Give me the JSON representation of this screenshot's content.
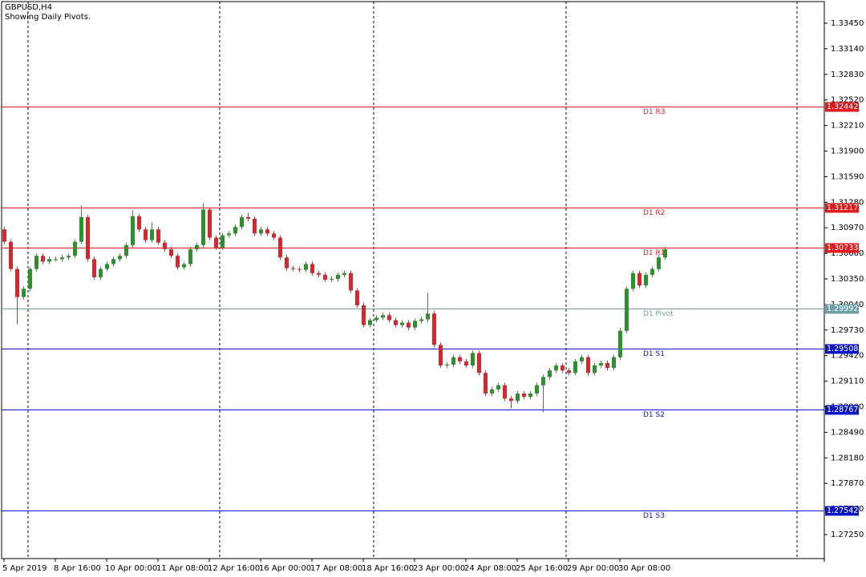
{
  "chart_data": {
    "type": "candlestick",
    "title": "GBPUSD,H4",
    "subtitle": "Showing Daily Pivots.",
    "categories": [
      "5 Apr 2019",
      null,
      null,
      null,
      null,
      null,
      null,
      null,
      "8 Apr 16:00",
      null,
      null,
      null,
      null,
      null,
      null,
      null,
      "10 Apr 00:00",
      null,
      null,
      null,
      null,
      null,
      null,
      null,
      "11 Apr 08:00",
      null,
      null,
      null,
      null,
      null,
      null,
      null,
      "12 Apr 16:00",
      null,
      null,
      null,
      null,
      null,
      null,
      null,
      "16 Apr 00:00",
      null,
      null,
      null,
      null,
      null,
      null,
      null,
      "17 Apr 08:00",
      null,
      null,
      null,
      null,
      null,
      null,
      null,
      "18 Apr 16:00",
      null,
      null,
      null,
      null,
      null,
      null,
      null,
      "23 Apr 00:00",
      null,
      null,
      null,
      null,
      null,
      null,
      null,
      "24 Apr 08:00",
      null,
      null,
      null,
      null,
      null,
      null,
      null,
      "25 Apr 16:00",
      null,
      null,
      null,
      null,
      null,
      null,
      null,
      "29 Apr 00:00",
      null,
      null,
      null,
      null,
      null,
      null,
      null,
      "30 Apr 08:00",
      null,
      null,
      null,
      null,
      null,
      null,
      null
    ],
    "open": [
      1.3095,
      1.308,
      1.3047,
      1.3013,
      1.3023,
      1.3047,
      1.3063,
      1.3056,
      1.3059,
      1.3059,
      1.3061,
      1.3063,
      1.308,
      1.311,
      1.3059,
      1.3037,
      1.3047,
      1.3053,
      1.3059,
      1.3063,
      1.3076,
      1.3111,
      1.3095,
      1.3082,
      1.3095,
      1.3079,
      1.3071,
      1.3063,
      1.3049,
      1.3053,
      1.3071,
      1.3076,
      1.3119,
      1.3085,
      1.3073,
      1.3088,
      1.309,
      1.3098,
      1.311,
      1.3108,
      1.309,
      1.3095,
      1.309,
      1.3085,
      1.3061,
      1.3048,
      1.3047,
      1.3046,
      1.3053,
      1.3042,
      1.304,
      1.3034,
      1.3035,
      1.304,
      1.3042,
      1.3021,
      1.3003,
      1.2979,
      1.2985,
      1.2988,
      1.2991,
      1.2985,
      1.2979,
      1.2982,
      1.2976,
      1.2984,
      1.2986,
      1.2993,
      1.2955,
      1.293,
      1.2931,
      1.294,
      1.2935,
      1.293,
      1.2945,
      1.2921,
      1.2896,
      1.2901,
      1.2906,
      1.289,
      1.2887,
      1.2896,
      1.2892,
      1.2896,
      1.2906,
      1.2916,
      1.2924,
      1.293,
      1.2924,
      1.2921,
      1.2935,
      1.294,
      1.2921,
      1.293,
      1.2933,
      1.2927,
      1.294,
      1.2972,
      1.3023,
      1.3042,
      1.3027,
      1.304,
      1.3047,
      1.3061
    ],
    "high": [
      1.3098,
      1.3083,
      1.305,
      1.3026,
      1.305,
      1.3066,
      1.3066,
      1.3062,
      1.3062,
      1.3064,
      1.3066,
      1.3083,
      1.3124,
      1.3113,
      1.3062,
      1.305,
      1.3056,
      1.3062,
      1.3066,
      1.3079,
      1.3118,
      1.3114,
      1.3098,
      1.3104,
      1.3098,
      1.3082,
      1.3074,
      1.3066,
      1.3056,
      1.3074,
      1.3079,
      1.3127,
      1.3122,
      1.3088,
      1.3091,
      1.3093,
      1.3101,
      1.3113,
      1.3115,
      1.3111,
      1.3098,
      1.3098,
      1.3093,
      1.3088,
      1.3064,
      1.3051,
      1.305,
      1.3056,
      1.3056,
      1.3045,
      1.3043,
      1.3038,
      1.3043,
      1.3045,
      1.3045,
      1.3024,
      1.3006,
      1.2988,
      1.2991,
      1.2994,
      1.2994,
      1.2988,
      1.2985,
      1.2985,
      1.2987,
      1.2989,
      1.3018,
      1.2996,
      1.2958,
      1.2934,
      1.2943,
      1.2943,
      1.2938,
      1.2948,
      1.2948,
      1.2924,
      1.2904,
      1.2909,
      1.2909,
      1.2893,
      1.2899,
      1.2899,
      1.2899,
      1.2909,
      1.2919,
      1.2927,
      1.2933,
      1.2933,
      1.2927,
      1.2938,
      1.2943,
      1.2943,
      1.2933,
      1.2936,
      1.2936,
      1.2943,
      1.2975,
      1.3026,
      1.3045,
      1.3045,
      1.3043,
      1.305,
      1.3064,
      1.3074
    ],
    "low": [
      1.3077,
      1.3044,
      1.298,
      1.301,
      1.302,
      1.3044,
      1.3053,
      1.3053,
      1.3056,
      1.3056,
      1.3058,
      1.306,
      1.3077,
      1.3056,
      1.3034,
      1.3034,
      1.3044,
      1.305,
      1.3056,
      1.306,
      1.3073,
      1.3092,
      1.3079,
      1.3079,
      1.3076,
      1.3068,
      1.306,
      1.3046,
      1.3046,
      1.305,
      1.3068,
      1.3073,
      1.3082,
      1.307,
      1.307,
      1.3085,
      1.3087,
      1.3095,
      1.3105,
      1.3087,
      1.3087,
      1.3087,
      1.3082,
      1.3058,
      1.3045,
      1.3044,
      1.3043,
      1.3043,
      1.3039,
      1.3037,
      1.3031,
      1.3031,
      1.3032,
      1.3037,
      1.3018,
      1.3,
      1.2976,
      1.2976,
      1.2982,
      1.2985,
      1.2982,
      1.2976,
      1.2976,
      1.2973,
      1.2973,
      1.2981,
      1.2983,
      1.2952,
      1.2927,
      1.2927,
      1.2928,
      1.2932,
      1.2927,
      1.2927,
      1.2918,
      1.2893,
      1.2893,
      1.2898,
      1.2887,
      1.2878,
      1.2884,
      1.2889,
      1.2889,
      1.2893,
      1.2873,
      1.2913,
      1.2921,
      1.2921,
      1.2918,
      1.2918,
      1.2932,
      1.2918,
      1.2918,
      1.2927,
      1.2924,
      1.2924,
      1.2937,
      1.2969,
      1.302,
      1.3024,
      1.3024,
      1.3037,
      1.3044,
      1.3058
    ],
    "close": [
      1.308,
      1.3047,
      1.3013,
      1.3023,
      1.3047,
      1.3063,
      1.3056,
      1.3059,
      1.3059,
      1.3061,
      1.3063,
      1.308,
      1.311,
      1.3059,
      1.3037,
      1.3047,
      1.3053,
      1.3059,
      1.3063,
      1.3076,
      1.3111,
      1.3095,
      1.3082,
      1.3095,
      1.3079,
      1.3071,
      1.3063,
      1.3049,
      1.3053,
      1.3071,
      1.3076,
      1.3119,
      1.3085,
      1.3073,
      1.3088,
      1.309,
      1.3098,
      1.311,
      1.3108,
      1.309,
      1.3095,
      1.309,
      1.3085,
      1.3061,
      1.3048,
      1.3047,
      1.3046,
      1.3053,
      1.3042,
      1.304,
      1.3034,
      1.3035,
      1.304,
      1.3042,
      1.3021,
      1.3003,
      1.2979,
      1.2985,
      1.2988,
      1.2991,
      1.2985,
      1.2979,
      1.2982,
      1.2976,
      1.2984,
      1.2986,
      1.2993,
      1.2955,
      1.293,
      1.2931,
      1.294,
      1.2935,
      1.293,
      1.2945,
      1.2921,
      1.2896,
      1.2901,
      1.2906,
      1.289,
      1.2887,
      1.2896,
      1.2892,
      1.2896,
      1.2906,
      1.2916,
      1.2924,
      1.293,
      1.2924,
      1.2921,
      1.2935,
      1.294,
      1.2921,
      1.293,
      1.2933,
      1.2927,
      1.294,
      1.2972,
      1.3023,
      1.3042,
      1.3027,
      1.304,
      1.3047,
      1.3061,
      1.3071
    ],
    "up_color": "#1e9a1e",
    "down_color": "#ee1c24",
    "ylim": [
      1.26959,
      1.33712
    ],
    "yticks": [
      {
        "value": 1.3345,
        "label": "1.33450"
      },
      {
        "value": 1.3314,
        "label": "1.33140"
      },
      {
        "value": 1.3283,
        "label": "1.32830"
      },
      {
        "value": 1.3252,
        "label": "1.32520"
      },
      {
        "value": 1.3221,
        "label": "1.32210"
      },
      {
        "value": 1.319,
        "label": "1.31900"
      },
      {
        "value": 1.3159,
        "label": "1.31590"
      },
      {
        "value": 1.3128,
        "label": "1.31280"
      },
      {
        "value": 1.3097,
        "label": "1.30970"
      },
      {
        "value": 1.3066,
        "label": "1.30660"
      },
      {
        "value": 1.3035,
        "label": "1.30350"
      },
      {
        "value": 1.3004,
        "label": "1.30040"
      },
      {
        "value": 1.2973,
        "label": "1.29730"
      },
      {
        "value": 1.2942,
        "label": "1.29420"
      },
      {
        "value": 1.2911,
        "label": "1.29110"
      },
      {
        "value": 1.288,
        "label": "1.28800"
      },
      {
        "value": 1.2849,
        "label": "1.28490"
      },
      {
        "value": 1.2818,
        "label": "1.28180"
      },
      {
        "value": 1.2787,
        "label": "1.27870"
      },
      {
        "value": 1.2756,
        "label": "1.27560"
      },
      {
        "value": 1.2725,
        "label": "1.27250"
      }
    ],
    "levels": [
      {
        "name": "D1 R3",
        "value": 1.32442,
        "color": "#e31a1c"
      },
      {
        "name": "D1 R2",
        "value": 1.31217,
        "color": "#e31a1c"
      },
      {
        "name": "D1 R1",
        "value": 1.30733,
        "color": "#e31a1c"
      },
      {
        "name": "D1 Pivot",
        "value": 1.29992,
        "color": "#6f9fa6"
      },
      {
        "name": "D1 S1",
        "value": 1.29508,
        "color": "#0a14c8"
      },
      {
        "name": "D1 S2",
        "value": 1.28767,
        "color": "#0a14c8"
      },
      {
        "name": "D1 S3",
        "value": 1.27542,
        "color": "#0a14c8"
      }
    ]
  }
}
